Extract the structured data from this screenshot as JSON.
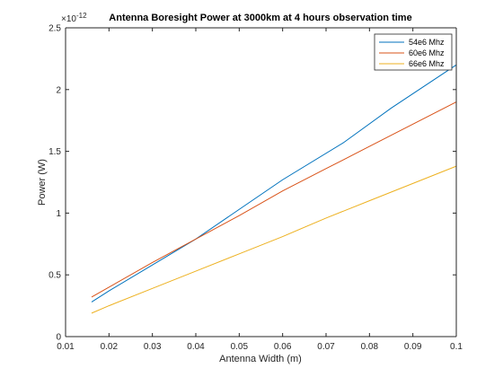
{
  "chart_data": {
    "type": "line",
    "title": "Antenna Boresight Power at 3000km at 4 hours observation time",
    "xlabel": "Antenna Width (m)",
    "ylabel": "Power (W)",
    "y_exponent_label": "×10",
    "y_exponent_power": "-12",
    "xlim": [
      0.01,
      0.1
    ],
    "ylim": [
      0,
      2.5
    ],
    "xticks": [
      0.01,
      0.02,
      0.03,
      0.04,
      0.05,
      0.06,
      0.07,
      0.08,
      0.09,
      0.1
    ],
    "xtick_labels": [
      "0.01",
      "0.02",
      "0.03",
      "0.04",
      "0.05",
      "0.06",
      "0.07",
      "0.08",
      "0.09",
      "0.1"
    ],
    "yticks": [
      0,
      0.5,
      1,
      1.5,
      2,
      2.5
    ],
    "ytick_labels": [
      "0",
      "0.5",
      "1",
      "1.5",
      "2",
      "2.5"
    ],
    "grid": false,
    "legend_position": "top-right",
    "series": [
      {
        "name": "54e6 Mhz",
        "color": "#0072BD",
        "x": [
          0.016,
          0.02,
          0.03,
          0.04,
          0.05,
          0.06,
          0.074,
          0.085,
          0.1
        ],
        "y": [
          0.28,
          0.37,
          0.58,
          0.79,
          1.03,
          1.27,
          1.57,
          1.85,
          2.2
        ]
      },
      {
        "name": "60e6 Mhz",
        "color": "#D95319",
        "x": [
          0.016,
          0.02,
          0.03,
          0.04,
          0.05,
          0.06,
          0.07,
          0.08,
          0.09,
          0.1
        ],
        "y": [
          0.32,
          0.4,
          0.6,
          0.79,
          0.98,
          1.18,
          1.36,
          1.54,
          1.72,
          1.9
        ]
      },
      {
        "name": "66e6 Mhz",
        "color": "#EDB120",
        "x": [
          0.016,
          0.02,
          0.03,
          0.04,
          0.05,
          0.06,
          0.07,
          0.08,
          0.09,
          0.1
        ],
        "y": [
          0.19,
          0.25,
          0.39,
          0.53,
          0.67,
          0.81,
          0.96,
          1.1,
          1.24,
          1.38
        ]
      }
    ]
  }
}
